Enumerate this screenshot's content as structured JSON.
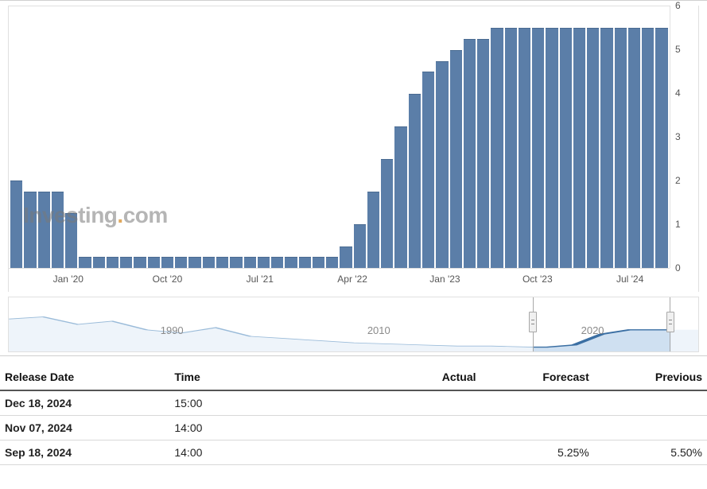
{
  "chart": {
    "type": "bar",
    "background_color": "#ffffff",
    "grid_color": "#e0e0e0",
    "bar_color": "#5b7ea8",
    "bar_border_color": "#4a6b91",
    "ylim": [
      0,
      6
    ],
    "yticks": [
      0,
      1,
      2,
      3,
      4,
      5,
      6
    ],
    "xticks": [
      {
        "label": "Jan '20",
        "pos_pct": 9
      },
      {
        "label": "Oct '20",
        "pos_pct": 24
      },
      {
        "label": "Jul '21",
        "pos_pct": 38
      },
      {
        "label": "Apr '22",
        "pos_pct": 52
      },
      {
        "label": "Jan '23",
        "pos_pct": 66
      },
      {
        "label": "Oct '23",
        "pos_pct": 80
      },
      {
        "label": "Jul '24",
        "pos_pct": 94
      }
    ],
    "values": [
      2.0,
      1.75,
      1.75,
      1.75,
      1.25,
      0.25,
      0.25,
      0.25,
      0.25,
      0.25,
      0.25,
      0.25,
      0.25,
      0.25,
      0.25,
      0.25,
      0.25,
      0.25,
      0.25,
      0.25,
      0.25,
      0.25,
      0.25,
      0.25,
      0.5,
      1.0,
      1.75,
      2.5,
      3.25,
      4.0,
      4.5,
      4.75,
      5.0,
      5.25,
      5.25,
      5.5,
      5.5,
      5.5,
      5.5,
      5.5,
      5.5,
      5.5,
      5.5,
      5.5,
      5.5,
      5.5,
      5.5,
      5.5
    ],
    "watermark_prefix": "Investing",
    "watermark_dot": ".",
    "watermark_suffix": "com",
    "tick_fontsize": 12,
    "tick_color": "#555555"
  },
  "navigator": {
    "labels": [
      {
        "text": "1990",
        "pos_pct": 22
      },
      {
        "text": "2010",
        "pos_pct": 52
      },
      {
        "text": "2020",
        "pos_pct": 83
      }
    ],
    "label_color": "#8a8a8a",
    "label_fontsize": 13,
    "area_fill": "#d6e4f2",
    "area_stroke": "#7aa3cc",
    "handle_left_pct": 76,
    "handle_right_pct": 96,
    "handle_fill": "#f0f0f0",
    "handle_border": "#a8a8a8"
  },
  "table": {
    "columns": {
      "date": "Release Date",
      "time": "Time",
      "actual": "Actual",
      "forecast": "Forecast",
      "previous": "Previous"
    },
    "header_border_color": "#555555",
    "row_border_color": "#d8d8d8",
    "rows": [
      {
        "date": "Dec 18, 2024",
        "time": "15:00",
        "actual": "",
        "forecast": "",
        "previous": ""
      },
      {
        "date": "Nov 07, 2024",
        "time": "14:00",
        "actual": "",
        "forecast": "",
        "previous": ""
      },
      {
        "date": "Sep 18, 2024",
        "time": "14:00",
        "actual": "",
        "forecast": "5.25%",
        "previous": "5.50%"
      }
    ]
  }
}
